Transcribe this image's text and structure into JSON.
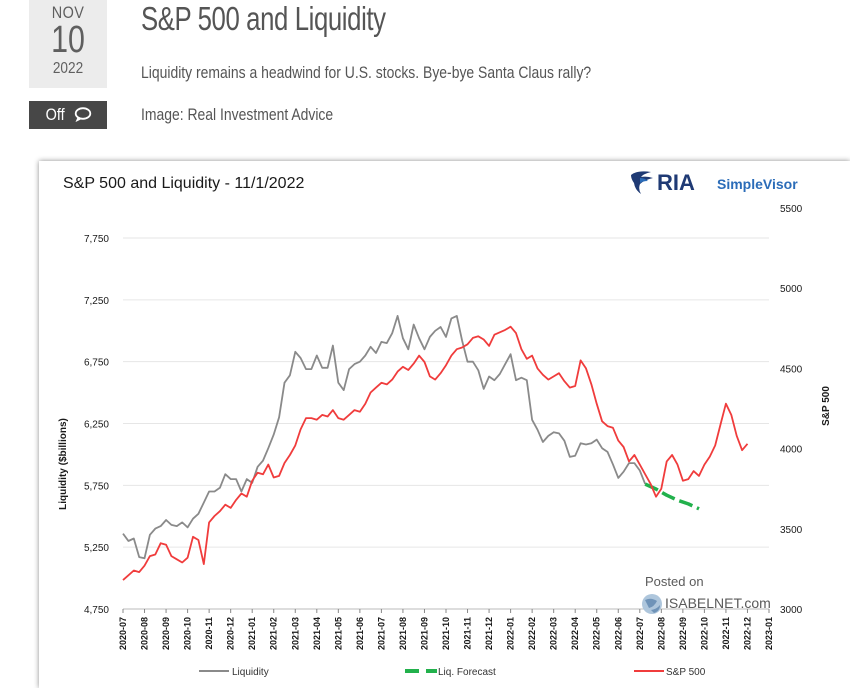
{
  "post": {
    "month": "NOV",
    "day": "10",
    "year": "2022",
    "title": "S&P 500 and Liquidity",
    "subtitle": "Liquidity remains a headwind for U.S. stocks. Bye-bye Santa Claus rally?",
    "credit": "Image: Real Investment Advice",
    "comments_label": "Off",
    "comments_icon": "speech-bubble-icon"
  },
  "brand": {
    "logo_icon": "eagle-icon",
    "name": "RIA",
    "product": "SimpleVisor",
    "colors": {
      "navy": "#1f3a74",
      "blue": "#2b6cb8"
    }
  },
  "watermark": {
    "line1": "Posted on",
    "line2": "ISABELNET.com"
  },
  "colors": {
    "liquidity": "#8a8a8a",
    "forecast": "#22b14c",
    "sp500": "#f03c3c",
    "grid": "#e6e6e6"
  },
  "chart_data": {
    "type": "line",
    "title": "S&P 500 and Liquidity - 11/1/2022",
    "ylabel": "Liquidity ($billions)",
    "y2label": "S&P 500",
    "ylim": [
      4750,
      7750
    ],
    "yticks": [
      "4,750",
      "5,250",
      "5,750",
      "6,250",
      "6,750",
      "7,250",
      "7,750"
    ],
    "y2lim": [
      3000,
      5500
    ],
    "y2ticks": [
      "3000",
      "3500",
      "4000",
      "4500",
      "5000",
      "5500"
    ],
    "x_start": "2020-07",
    "x_end": "2023-01",
    "x": [
      "2020-07",
      "2020-08",
      "2020-09",
      "2020-10",
      "2020-11",
      "2020-12",
      "2021-01",
      "2021-02",
      "2021-03",
      "2021-04",
      "2021-05",
      "2021-06",
      "2021-07",
      "2021-08",
      "2021-09",
      "2021-10",
      "2021-11",
      "2021-12",
      "2022-01",
      "2022-02",
      "2022-03",
      "2022-04",
      "2022-05",
      "2022-06",
      "2022-07",
      "2022-08",
      "2022-09",
      "2022-10",
      "2022-11",
      "2022-12",
      "2023-01"
    ],
    "series": [
      {
        "name": "Liquidity",
        "values": [
          [
            0,
            5360
          ],
          [
            0.25,
            5300
          ],
          [
            0.5,
            5320
          ],
          [
            0.75,
            5170
          ],
          [
            1,
            5160
          ],
          [
            1.25,
            5350
          ],
          [
            1.5,
            5400
          ],
          [
            1.75,
            5420
          ],
          [
            2,
            5470
          ],
          [
            2.25,
            5430
          ],
          [
            2.5,
            5420
          ],
          [
            2.75,
            5450
          ],
          [
            3,
            5410
          ],
          [
            3.25,
            5480
          ],
          [
            3.5,
            5520
          ],
          [
            3.75,
            5610
          ],
          [
            4,
            5700
          ],
          [
            4.25,
            5700
          ],
          [
            4.5,
            5730
          ],
          [
            4.75,
            5840
          ],
          [
            5,
            5800
          ],
          [
            5.25,
            5800
          ],
          [
            5.5,
            5700
          ],
          [
            5.75,
            5800
          ],
          [
            6,
            5770
          ],
          [
            6.25,
            5900
          ],
          [
            6.5,
            5950
          ],
          [
            6.75,
            6050
          ],
          [
            7,
            6160
          ],
          [
            7.25,
            6300
          ],
          [
            7.5,
            6580
          ],
          [
            7.75,
            6640
          ],
          [
            8,
            6830
          ],
          [
            8.25,
            6780
          ],
          [
            8.5,
            6690
          ],
          [
            8.75,
            6690
          ],
          [
            9,
            6800
          ],
          [
            9.25,
            6700
          ],
          [
            9.5,
            6700
          ],
          [
            9.75,
            6880
          ],
          [
            10,
            6580
          ],
          [
            10.25,
            6520
          ],
          [
            10.5,
            6690
          ],
          [
            10.75,
            6730
          ],
          [
            11,
            6750
          ],
          [
            11.25,
            6800
          ],
          [
            11.5,
            6870
          ],
          [
            11.75,
            6820
          ],
          [
            12,
            6910
          ],
          [
            12.25,
            6900
          ],
          [
            12.5,
            6980
          ],
          [
            12.75,
            7120
          ],
          [
            13,
            6940
          ],
          [
            13.25,
            6850
          ],
          [
            13.5,
            7050
          ],
          [
            13.75,
            6940
          ],
          [
            14,
            6850
          ],
          [
            14.25,
            6950
          ],
          [
            14.5,
            7000
          ],
          [
            14.75,
            7030
          ],
          [
            15,
            6950
          ],
          [
            15.25,
            7100
          ],
          [
            15.5,
            7120
          ],
          [
            15.75,
            6920
          ],
          [
            16,
            6750
          ],
          [
            16.25,
            6750
          ],
          [
            16.5,
            6680
          ],
          [
            16.75,
            6530
          ],
          [
            17,
            6630
          ],
          [
            17.25,
            6600
          ],
          [
            17.5,
            6650
          ],
          [
            17.75,
            6730
          ],
          [
            18,
            6810
          ],
          [
            18.25,
            6600
          ],
          [
            18.5,
            6620
          ],
          [
            18.75,
            6600
          ],
          [
            19,
            6280
          ],
          [
            19.25,
            6200
          ],
          [
            19.5,
            6100
          ],
          [
            19.75,
            6150
          ],
          [
            20,
            6180
          ],
          [
            20.25,
            6170
          ],
          [
            20.5,
            6110
          ],
          [
            20.75,
            5980
          ],
          [
            21,
            5990
          ],
          [
            21.25,
            6090
          ],
          [
            21.5,
            6080
          ],
          [
            21.75,
            6090
          ],
          [
            22,
            6120
          ],
          [
            22.25,
            6050
          ],
          [
            22.5,
            6020
          ],
          [
            22.75,
            5920
          ],
          [
            23,
            5810
          ],
          [
            23.25,
            5860
          ],
          [
            23.5,
            5930
          ],
          [
            23.75,
            5930
          ],
          [
            24,
            5870
          ],
          [
            24.25,
            5760
          ]
        ]
      },
      {
        "name": "Liq. Forecast",
        "values": [
          [
            24.25,
            5760
          ],
          [
            24.75,
            5720
          ],
          [
            25.25,
            5670
          ],
          [
            25.75,
            5630
          ],
          [
            26.25,
            5600
          ],
          [
            26.75,
            5560
          ]
        ]
      },
      {
        "name": "S&P 500",
        "values": [
          [
            0,
            3180
          ],
          [
            0.25,
            3210
          ],
          [
            0.5,
            3240
          ],
          [
            0.75,
            3230
          ],
          [
            1,
            3270
          ],
          [
            1.25,
            3330
          ],
          [
            1.5,
            3340
          ],
          [
            1.75,
            3410
          ],
          [
            2,
            3400
          ],
          [
            2.25,
            3330
          ],
          [
            2.5,
            3310
          ],
          [
            2.75,
            3290
          ],
          [
            3,
            3320
          ],
          [
            3.25,
            3450
          ],
          [
            3.5,
            3430
          ],
          [
            3.75,
            3280
          ],
          [
            4,
            3540
          ],
          [
            4.25,
            3580
          ],
          [
            4.5,
            3610
          ],
          [
            4.75,
            3650
          ],
          [
            5,
            3630
          ],
          [
            5.25,
            3680
          ],
          [
            5.5,
            3720
          ],
          [
            5.75,
            3700
          ],
          [
            6,
            3800
          ],
          [
            6.25,
            3850
          ],
          [
            6.5,
            3840
          ],
          [
            6.75,
            3900
          ],
          [
            7,
            3820
          ],
          [
            7.25,
            3830
          ],
          [
            7.5,
            3910
          ],
          [
            7.75,
            3960
          ],
          [
            8,
            4020
          ],
          [
            8.25,
            4120
          ],
          [
            8.5,
            4190
          ],
          [
            8.75,
            4190
          ],
          [
            9,
            4180
          ],
          [
            9.25,
            4210
          ],
          [
            9.5,
            4200
          ],
          [
            9.75,
            4240
          ],
          [
            10,
            4190
          ],
          [
            10.25,
            4180
          ],
          [
            10.5,
            4210
          ],
          [
            10.75,
            4240
          ],
          [
            11,
            4230
          ],
          [
            11.25,
            4280
          ],
          [
            11.5,
            4350
          ],
          [
            11.75,
            4380
          ],
          [
            12,
            4410
          ],
          [
            12.25,
            4400
          ],
          [
            12.5,
            4430
          ],
          [
            12.75,
            4480
          ],
          [
            13,
            4510
          ],
          [
            13.25,
            4490
          ],
          [
            13.5,
            4530
          ],
          [
            13.75,
            4580
          ],
          [
            14,
            4540
          ],
          [
            14.25,
            4450
          ],
          [
            14.5,
            4430
          ],
          [
            14.75,
            4470
          ],
          [
            15,
            4520
          ],
          [
            15.25,
            4580
          ],
          [
            15.5,
            4620
          ],
          [
            15.75,
            4630
          ],
          [
            16,
            4650
          ],
          [
            16.25,
            4690
          ],
          [
            16.5,
            4700
          ],
          [
            16.75,
            4680
          ],
          [
            17,
            4640
          ],
          [
            17.25,
            4710
          ],
          [
            17.75,
            4740
          ],
          [
            18,
            4760
          ],
          [
            18.25,
            4720
          ],
          [
            18.5,
            4620
          ],
          [
            18.75,
            4560
          ],
          [
            19,
            4580
          ],
          [
            19.25,
            4500
          ],
          [
            19.5,
            4460
          ],
          [
            19.75,
            4430
          ],
          [
            20,
            4450
          ],
          [
            20.25,
            4470
          ],
          [
            20.5,
            4420
          ],
          [
            20.75,
            4380
          ],
          [
            21,
            4390
          ],
          [
            21.25,
            4550
          ],
          [
            21.5,
            4500
          ],
          [
            21.75,
            4400
          ],
          [
            22,
            4280
          ],
          [
            22.25,
            4170
          ],
          [
            22.5,
            4140
          ],
          [
            22.75,
            4130
          ],
          [
            23,
            4050
          ],
          [
            23.25,
            4010
          ],
          [
            23.5,
            3920
          ],
          [
            23.75,
            3960
          ],
          [
            24,
            3900
          ],
          [
            24.25,
            3840
          ],
          [
            24.5,
            3780
          ],
          [
            24.75,
            3700
          ],
          [
            25,
            3750
          ],
          [
            25.25,
            3920
          ],
          [
            25.5,
            3960
          ],
          [
            25.75,
            3900
          ],
          [
            26,
            3800
          ],
          [
            26.25,
            3810
          ],
          [
            26.5,
            3860
          ],
          [
            26.75,
            3830
          ],
          [
            27,
            3900
          ],
          [
            27.25,
            3950
          ],
          [
            27.5,
            4020
          ],
          [
            27.75,
            4150
          ],
          [
            28,
            4280
          ],
          [
            28.25,
            4210
          ],
          [
            28.5,
            4080
          ],
          [
            28.75,
            3990
          ],
          [
            29,
            4030
          ]
        ]
      }
    ],
    "legend": [
      "Liquidity",
      "Liq. Forecast",
      "S&P 500"
    ],
    "legend_position": "bottom",
    "grid": true
  }
}
